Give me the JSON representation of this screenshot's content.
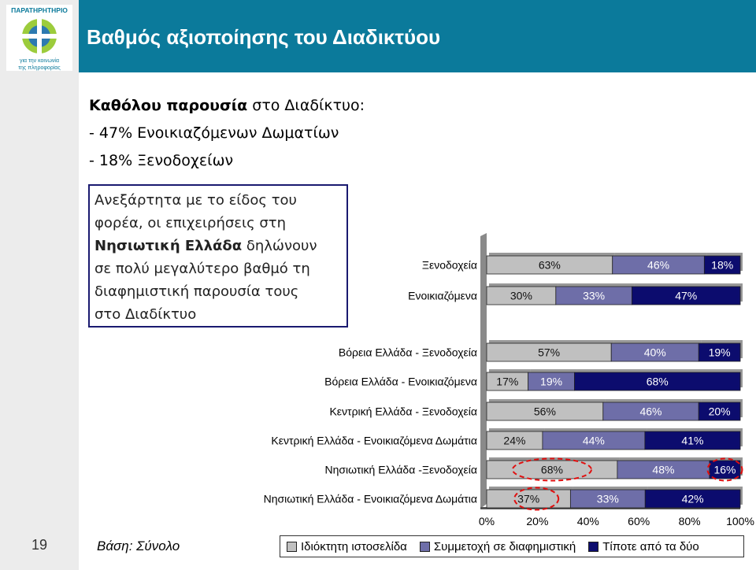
{
  "header": {
    "title": "Βαθμός αξιοποίησης του Διαδικτύου",
    "logo_text": "ΠΑΡΑΤΗΡΗΤΗΡΙΟ",
    "logo_subtext": [
      "για την κοινωνία",
      "της πληροφορίας"
    ]
  },
  "intro": {
    "line1_bold": "Καθόλου παρουσία",
    "line1_rest": " στο Διαδίκτυο:",
    "line2": "- 47% Ενοικιαζόμενων Δωματίων",
    "line3": "- 18% Ξενοδοχείων"
  },
  "callout": {
    "line1": "Ανεξάρτητα με το είδος του",
    "line2": "φορέα, οι επιχειρήσεις στη",
    "bold": "Νησιωτική Ελλάδα",
    "line3_rest": " δηλώνουν",
    "line4": "σε πολύ μεγαλύτερο βαθμό τη",
    "line5": "διαφημιστική παρουσία τους",
    "line6": "στο Διαδίκτυο"
  },
  "footer": {
    "slide_number": "19",
    "basis": "Βάση: Σύνολο"
  },
  "colors": {
    "own_site": "#c0c0c0",
    "ad_presence": "#6e6ea8",
    "nothing": "#0c0c6e",
    "header": "#0b7a9b"
  },
  "chart_data": {
    "type": "bar",
    "orientation": "horizontal",
    "stacked": true,
    "percent_stacked": true,
    "categories": [
      "Ξενοδοχεία",
      "Ενοικιαζόμενα",
      "Βόρεια Ελλάδα - Ξενοδοχεία",
      "Βόρεια Ελλάδα - Ενοικιαζόμενα",
      "Κεντρική Ελλάδα - Ξενοδοχεία",
      "Κεντρική Ελλάδα - Ενοικιαζόμενα Δωμάτια",
      "Νησιωτική Ελλάδα -Ξενοδοχεία",
      "Νησιωτική Ελλάδα - Ενοικιαζόμενα Δωμάτια"
    ],
    "series": [
      {
        "name": "Ιδιόκτητη ιστοσελίδα",
        "values": [
          63,
          30,
          57,
          17,
          56,
          24,
          68,
          37
        ]
      },
      {
        "name": "Συμμετοχή σε διαφημιστική",
        "values": [
          46,
          33,
          40,
          19,
          46,
          44,
          48,
          33
        ]
      },
      {
        "name": "Τίποτε από τα δύο",
        "values": [
          18,
          47,
          19,
          68,
          20,
          41,
          16,
          42
        ]
      }
    ],
    "x_ticks": [
      "0%",
      "20%",
      "40%",
      "60%",
      "80%",
      "100%"
    ],
    "legend": "bottom",
    "grid": false
  }
}
